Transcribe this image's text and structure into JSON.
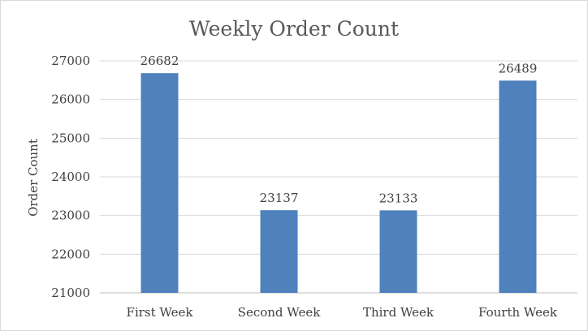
{
  "chart_data": {
    "type": "bar",
    "title": "Weekly Order Count",
    "xlabel": "",
    "ylabel": "Order Count",
    "categories": [
      "First Week",
      "Second Week",
      "Third Week",
      "Fourth Week"
    ],
    "values": [
      26682,
      23137,
      23133,
      26489
    ],
    "data_labels": [
      "26682",
      "23137",
      "23133",
      "26489"
    ],
    "ylim": [
      21000,
      27000
    ],
    "yticks": [
      21000,
      22000,
      23000,
      24000,
      25000,
      26000,
      27000
    ],
    "ytick_labels": [
      "21000",
      "22000",
      "23000",
      "24000",
      "25000",
      "26000",
      "27000"
    ],
    "grid": true,
    "legend": "none",
    "colors": {
      "bar": "#4f81bd",
      "grid": "#d9d9d9",
      "axis": "#bfbfbf"
    }
  }
}
